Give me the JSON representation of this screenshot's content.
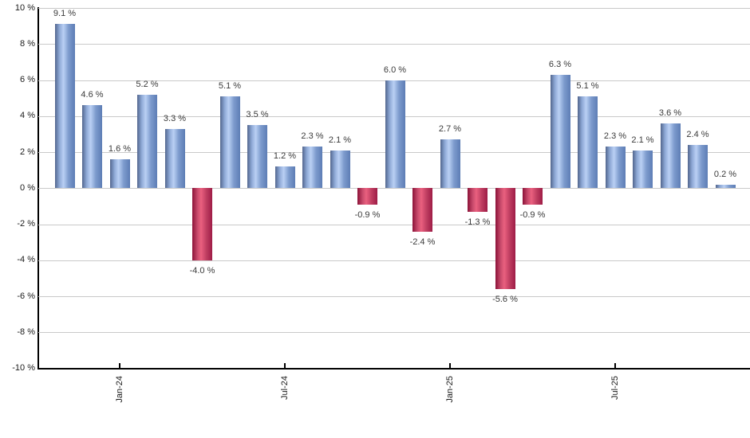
{
  "chart_data": {
    "type": "bar",
    "title": "",
    "xlabel": "",
    "ylabel": "",
    "unit": "%",
    "values": [
      9.1,
      4.6,
      1.6,
      5.2,
      3.3,
      -4.0,
      5.1,
      3.5,
      1.2,
      2.3,
      2.1,
      -0.9,
      6.0,
      -2.4,
      2.7,
      -1.3,
      -5.6,
      -0.9,
      6.3,
      5.1,
      2.3,
      2.1,
      3.6,
      2.4,
      0.2
    ],
    "bar_value_labels": [
      "9.1 %",
      "4.6 %",
      "1.6 %",
      "5.2 %",
      "3.3 %",
      "-4.0 %",
      "5.1 %",
      "3.5 %",
      "1.2 %",
      "2.3 %",
      "2.1 %",
      "-0.9 %",
      "6.0 %",
      "-2.4 %",
      "2.7 %",
      "-1.3 %",
      "-5.6 %",
      "-0.9 %",
      "6.3 %",
      "5.1 %",
      "2.3 %",
      "2.1 %",
      "3.6 %",
      "2.4 %",
      "0.2 %"
    ],
    "x_ticks": [
      {
        "label": "Jan-24",
        "bar_index": 2
      },
      {
        "label": "Jul-24",
        "bar_index": 8
      },
      {
        "label": "Jan-25",
        "bar_index": 14
      },
      {
        "label": "Jul-25",
        "bar_index": 20
      }
    ],
    "y_ticks": [
      {
        "value": 10,
        "label": "10 %"
      },
      {
        "value": 8,
        "label": "8 %"
      },
      {
        "value": 6,
        "label": "6 %"
      },
      {
        "value": 4,
        "label": "4 %"
      },
      {
        "value": 2,
        "label": "2 %"
      },
      {
        "value": 0,
        "label": "0 %"
      },
      {
        "value": -2,
        "label": "-2 %"
      },
      {
        "value": -4,
        "label": "-4 %"
      },
      {
        "value": -6,
        "label": "-6 %"
      },
      {
        "value": -8,
        "label": "-8 %"
      },
      {
        "value": -10,
        "label": "-10 %"
      }
    ],
    "ylim": [
      -10,
      10
    ],
    "grid": true,
    "legend_position": "none",
    "colors": {
      "positive_bar_edge_left": "#52668e",
      "positive_bar_mid1": "#8ea9d6",
      "positive_bar_highlight": "#bad0f4",
      "positive_bar_mid2": "#7d9bcd",
      "positive_bar_edge_right": "#5d7db5",
      "negative_bar_edge_left": "#8c1238",
      "negative_bar_mid1": "#c84b6c",
      "negative_bar_highlight": "#ea607f",
      "negative_bar_mid2": "#c03f62",
      "negative_bar_edge_right": "#9e1c46",
      "gridline": "#c9c9c9",
      "axis": "#000000",
      "value_label_text": "#3a3a3a",
      "tick_label_text": "#1a1a1a",
      "background": "#ffffff"
    }
  }
}
